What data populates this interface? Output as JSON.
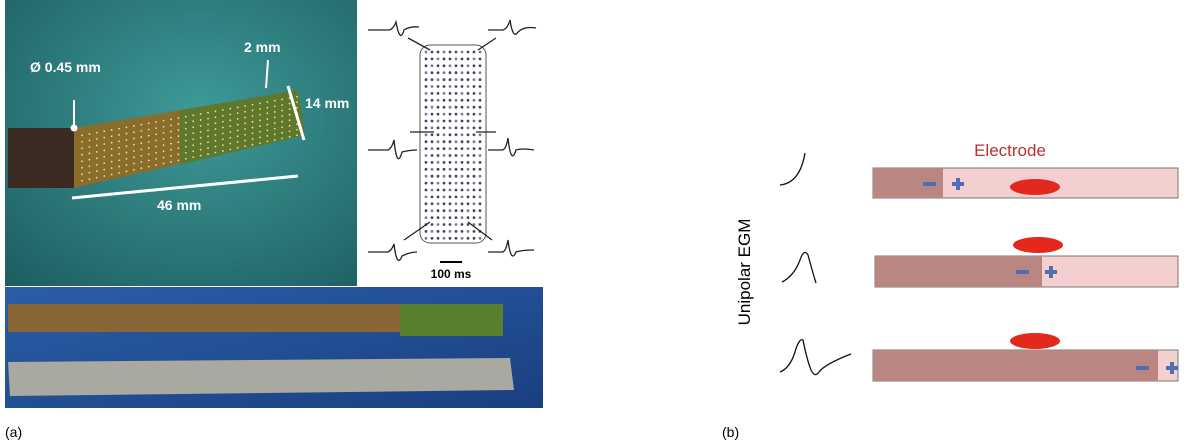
{
  "panel_a": {
    "label": "(a)",
    "annotations": {
      "diameter": "Ø 0.45 mm",
      "spacing": "2 mm",
      "width": "14 mm",
      "length": "46 mm"
    },
    "scale_bar": "100 ms"
  },
  "panel_b": {
    "label": "(b)",
    "electrode_label": "Electrode",
    "y_label": "Unipolar EGM"
  }
}
